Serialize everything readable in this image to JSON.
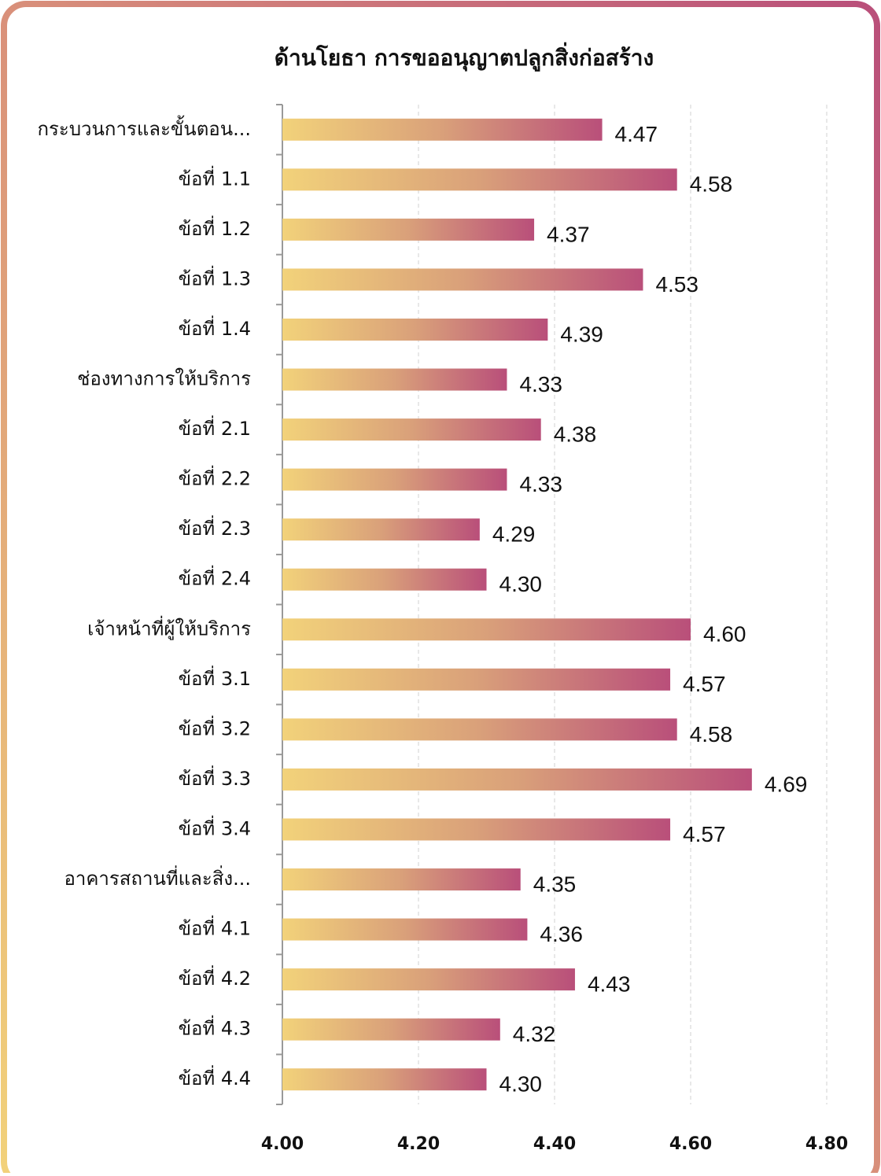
{
  "chart_data": {
    "type": "bar",
    "orientation": "horizontal",
    "title": "ด้านโยธา การขออนุญาตปลูกสิ่งก่อสร้าง",
    "categories": [
      "กระบวนการและขั้นตอน...",
      "ข้อที่ 1.1",
      "ข้อที่ 1.2",
      "ข้อที่ 1.3",
      "ข้อที่ 1.4",
      "ช่องทางการให้บริการ",
      "ข้อที่ 2.1",
      "ข้อที่ 2.2",
      "ข้อที่ 2.3",
      "ข้อที่ 2.4",
      "เจ้าหน้าที่ผู้ให้บริการ",
      "ข้อที่ 3.1",
      "ข้อที่ 3.2",
      "ข้อที่ 3.3",
      "ข้อที่ 3.4",
      "อาคารสถานที่และสิ่ง...",
      "ข้อที่ 4.1",
      "ข้อที่ 4.2",
      "ข้อที่ 4.3",
      "ข้อที่ 4.4"
    ],
    "values": [
      4.47,
      4.58,
      4.37,
      4.53,
      4.39,
      4.33,
      4.38,
      4.33,
      4.29,
      4.3,
      4.6,
      4.57,
      4.58,
      4.69,
      4.57,
      4.35,
      4.36,
      4.43,
      4.32,
      4.3
    ],
    "value_labels": [
      "4.47",
      "4.58",
      "4.37",
      "4.53",
      "4.39",
      "4.33",
      "4.38",
      "4.33",
      "4.29",
      "4.30",
      "4.60",
      "4.57",
      "4.58",
      "4.69",
      "4.57",
      "4.35",
      "4.36",
      "4.43",
      "4.32",
      "4.30"
    ],
    "color": [
      "#f2d27a",
      "#d9a07a",
      "#b94f7a"
    ],
    "xlim": [
      4,
      4.8
    ],
    "xticks": [
      {
        "value": 4,
        "label": "4.00"
      },
      {
        "value": 4.2,
        "label": "4.20"
      },
      {
        "value": 4.4,
        "label": "4.40"
      },
      {
        "value": 4.6,
        "label": "4.60"
      },
      {
        "value": 4.8,
        "label": "4.80"
      }
    ],
    "grid": true
  }
}
